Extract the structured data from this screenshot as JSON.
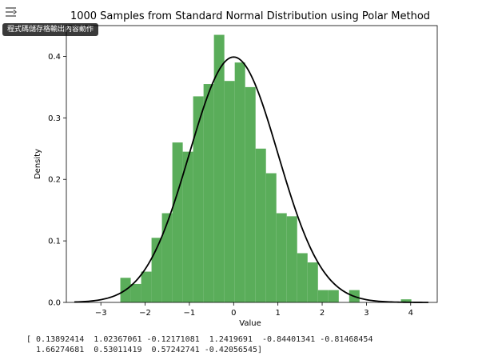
{
  "ui": {
    "tooltip": "程式碼儲存格輸出內容動作",
    "collapse_icon": "collapse-output-icon"
  },
  "output_text": {
    "line1": "[ 0.13892414  1.02367061 -0.12171081  1.2419691  -0.84401341 -0.81468454",
    "line2": "  1.66274681  0.53011419  0.57242741 -0.42056545]"
  },
  "chart_data": {
    "type": "bar",
    "title": "1000 Samples from Standard Normal Distribution using Polar Method",
    "xlabel": "Value",
    "ylabel": "Density",
    "xlim": [
      -3.78,
      4.6
    ],
    "ylim": [
      0,
      0.45
    ],
    "xticks": [
      "−3",
      "−2",
      "−1",
      "0",
      "1",
      "2",
      "3",
      "4"
    ],
    "xtick_values": [
      -3,
      -2,
      -1,
      0,
      1,
      2,
      3,
      4
    ],
    "yticks": [
      "0.0",
      "0.1",
      "0.2",
      "0.3",
      "0.4"
    ],
    "ytick_values": [
      0,
      0.1,
      0.2,
      0.3,
      0.4
    ],
    "bar_color": "#5aad5a",
    "curve_color": "#000000",
    "bin_width": 0.235,
    "bins": [
      {
        "x": -2.56,
        "density": 0.04
      },
      {
        "x": -2.325,
        "density": 0.03
      },
      {
        "x": -2.09,
        "density": 0.05
      },
      {
        "x": -1.855,
        "density": 0.105
      },
      {
        "x": -1.62,
        "density": 0.145
      },
      {
        "x": -1.385,
        "density": 0.26
      },
      {
        "x": -1.15,
        "density": 0.245
      },
      {
        "x": -0.915,
        "density": 0.335
      },
      {
        "x": -0.68,
        "density": 0.355
      },
      {
        "x": -0.445,
        "density": 0.435
      },
      {
        "x": -0.21,
        "density": 0.36
      },
      {
        "x": 0.025,
        "density": 0.39
      },
      {
        "x": 0.26,
        "density": 0.35
      },
      {
        "x": 0.495,
        "density": 0.25
      },
      {
        "x": 0.73,
        "density": 0.21
      },
      {
        "x": 0.965,
        "density": 0.145
      },
      {
        "x": 1.2,
        "density": 0.14
      },
      {
        "x": 1.435,
        "density": 0.08
      },
      {
        "x": 1.67,
        "density": 0.065
      },
      {
        "x": 1.905,
        "density": 0.02
      },
      {
        "x": 2.14,
        "density": 0.02
      },
      {
        "x": 2.61,
        "density": 0.02
      },
      {
        "x": 3.78,
        "density": 0.005
      }
    ],
    "curve": {
      "mean": 0,
      "std": 1,
      "x_start": -3.6,
      "x_end": 4.4
    }
  }
}
